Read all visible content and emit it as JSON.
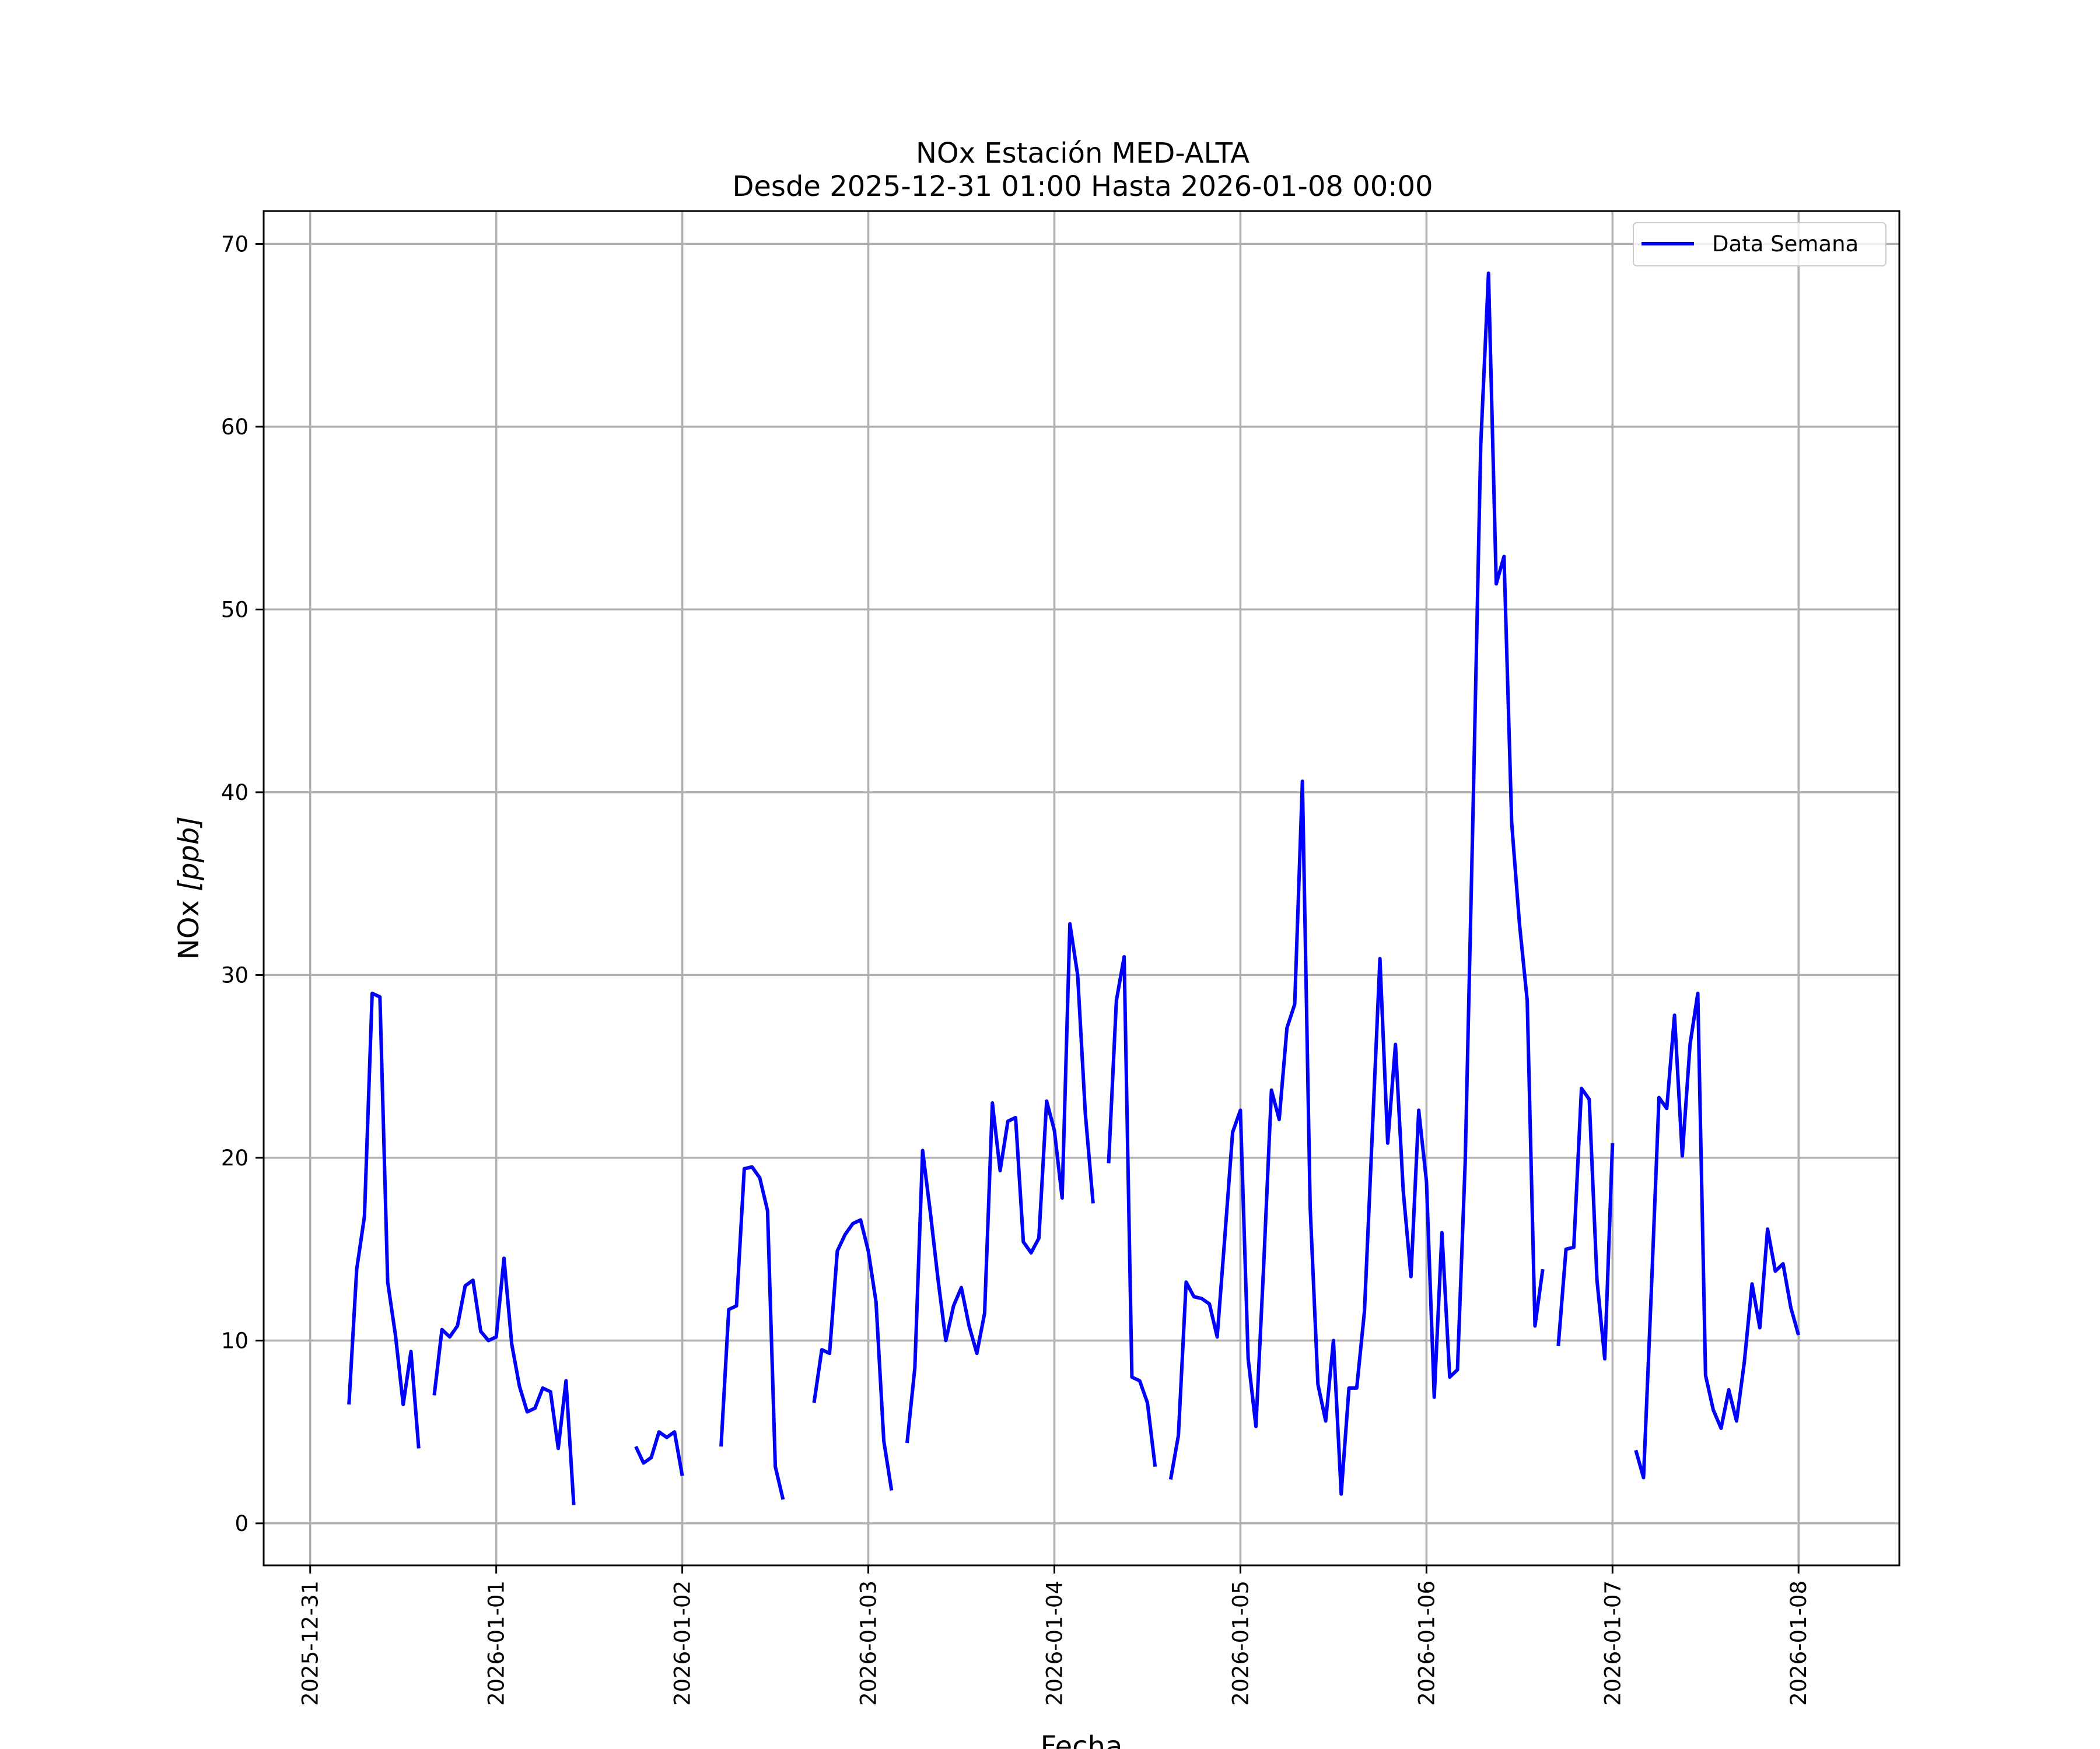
{
  "chart_data": {
    "type": "line",
    "title": "NOx Estación MED-ALTA",
    "subtitle": "Desde 2025-12-31 01:00 Hasta 2026-01-08 00:00",
    "xlabel": "Fecha",
    "ylabel": "NOx [ppb]",
    "ylabel_main": "NOx ",
    "ylabel_unit": "[ppb]",
    "x_ticks": [
      "2025-12-31",
      "2026-01-01",
      "2026-01-02",
      "2026-01-03",
      "2026-01-04",
      "2026-01-05",
      "2026-01-06",
      "2026-01-07",
      "2026-01-08"
    ],
    "y_ticks": [
      "0",
      "10",
      "20",
      "30",
      "40",
      "50",
      "60",
      "70"
    ],
    "xlim": [
      "2025-12-30 18:00",
      "2026-01-08 13:00"
    ],
    "ylim": [
      -2.3,
      71.8
    ],
    "grid": true,
    "legend_position": "upper right",
    "color": "#0000ff",
    "series": [
      {
        "name": "Data Semana",
        "segments": [
          [
            [
              "2025-12-31 05:00",
              6.5
            ],
            [
              "2025-12-31 06:00",
              13.9
            ],
            [
              "2025-12-31 07:00",
              16.8
            ],
            [
              "2025-12-31 08:00",
              29.0
            ],
            [
              "2025-12-31 09:00",
              28.8
            ],
            [
              "2025-12-31 10:00",
              13.2
            ],
            [
              "2025-12-31 11:00",
              10.3
            ],
            [
              "2025-12-31 12:00",
              6.5
            ],
            [
              "2025-12-31 13:00",
              9.4
            ],
            [
              "2025-12-31 14:00",
              4.1
            ]
          ],
          [
            [
              "2025-12-31 16:00",
              7.0
            ],
            [
              "2025-12-31 17:00",
              10.6
            ],
            [
              "2025-12-31 18:00",
              10.2
            ],
            [
              "2025-12-31 19:00",
              10.8
            ],
            [
              "2025-12-31 20:00",
              13.0
            ],
            [
              "2025-12-31 21:00",
              13.3
            ],
            [
              "2025-12-31 22:00",
              10.5
            ],
            [
              "2025-12-31 23:00",
              10.0
            ],
            [
              "2026-01-01 00:00",
              10.2
            ],
            [
              "2026-01-01 01:00",
              14.5
            ],
            [
              "2026-01-01 02:00",
              9.8
            ],
            [
              "2026-01-01 03:00",
              7.5
            ],
            [
              "2026-01-01 04:00",
              6.1
            ],
            [
              "2026-01-01 05:00",
              6.3
            ],
            [
              "2026-01-01 06:00",
              7.4
            ],
            [
              "2026-01-01 07:00",
              7.2
            ],
            [
              "2026-01-01 08:00",
              4.1
            ],
            [
              "2026-01-01 09:00",
              7.8
            ],
            [
              "2026-01-01 10:00",
              1.0
            ]
          ],
          [
            [
              "2026-01-01 18:00",
              4.2
            ],
            [
              "2026-01-01 19:00",
              3.3
            ],
            [
              "2026-01-01 20:00",
              3.6
            ],
            [
              "2026-01-01 21:00",
              5.0
            ],
            [
              "2026-01-01 22:00",
              4.7
            ],
            [
              "2026-01-01 23:00",
              5.0
            ],
            [
              "2026-01-02 00:00",
              2.6
            ]
          ],
          [
            [
              "2026-01-02 05:00",
              4.2
            ],
            [
              "2026-01-02 06:00",
              11.7
            ],
            [
              "2026-01-02 07:00",
              11.9
            ],
            [
              "2026-01-02 08:00",
              19.4
            ],
            [
              "2026-01-02 09:00",
              19.5
            ],
            [
              "2026-01-02 10:00",
              18.9
            ],
            [
              "2026-01-02 11:00",
              17.1
            ],
            [
              "2026-01-02 12:00",
              3.1
            ],
            [
              "2026-01-02 13:00",
              1.3
            ]
          ],
          [
            [
              "2026-01-02 17:00",
              6.6
            ],
            [
              "2026-01-02 18:00",
              9.5
            ],
            [
              "2026-01-02 19:00",
              9.3
            ],
            [
              "2026-01-02 20:00",
              14.9
            ],
            [
              "2026-01-02 21:00",
              15.8
            ],
            [
              "2026-01-02 22:00",
              16.4
            ],
            [
              "2026-01-02 23:00",
              16.6
            ],
            [
              "2026-01-03 00:00",
              14.9
            ],
            [
              "2026-01-03 01:00",
              12.1
            ],
            [
              "2026-01-03 02:00",
              4.5
            ],
            [
              "2026-01-03 03:00",
              1.8
            ]
          ],
          [
            [
              "2026-01-03 05:00",
              4.4
            ],
            [
              "2026-01-03 06:00",
              8.5
            ],
            [
              "2026-01-03 07:00",
              20.4
            ],
            [
              "2026-01-03 08:00",
              17.0
            ],
            [
              "2026-01-03 09:00",
              13.3
            ],
            [
              "2026-01-03 10:00",
              10.0
            ],
            [
              "2026-01-03 11:00",
              11.9
            ],
            [
              "2026-01-03 12:00",
              12.9
            ],
            [
              "2026-01-03 13:00",
              10.8
            ],
            [
              "2026-01-03 14:00",
              9.3
            ],
            [
              "2026-01-03 15:00",
              11.5
            ],
            [
              "2026-01-03 16:00",
              23.0
            ],
            [
              "2026-01-03 17:00",
              19.3
            ],
            [
              "2026-01-03 18:00",
              22.0
            ],
            [
              "2026-01-03 19:00",
              22.2
            ],
            [
              "2026-01-03 20:00",
              15.4
            ],
            [
              "2026-01-03 21:00",
              14.8
            ],
            [
              "2026-01-03 22:00",
              15.6
            ],
            [
              "2026-01-03 23:00",
              23.1
            ],
            [
              "2026-01-04 00:00",
              21.5
            ],
            [
              "2026-01-04 01:00",
              17.8
            ],
            [
              "2026-01-04 02:00",
              32.8
            ],
            [
              "2026-01-04 03:00",
              30.0
            ],
            [
              "2026-01-04 04:00",
              22.4
            ],
            [
              "2026-01-04 05:00",
              17.5
            ]
          ],
          [
            [
              "2026-01-04 07:00",
              19.7
            ],
            [
              "2026-01-04 08:00",
              28.6
            ],
            [
              "2026-01-04 09:00",
              31.0
            ],
            [
              "2026-01-04 10:00",
              8.0
            ],
            [
              "2026-01-04 11:00",
              7.8
            ],
            [
              "2026-01-04 12:00",
              6.6
            ],
            [
              "2026-01-04 13:00",
              3.1
            ]
          ],
          [
            [
              "2026-01-04 15:00",
              2.4
            ],
            [
              "2026-01-04 16:00",
              4.8
            ],
            [
              "2026-01-04 17:00",
              13.2
            ],
            [
              "2026-01-04 18:00",
              12.4
            ],
            [
              "2026-01-04 19:00",
              12.3
            ],
            [
              "2026-01-04 20:00",
              12.0
            ],
            [
              "2026-01-04 21:00",
              10.2
            ],
            [
              "2026-01-04 22:00",
              15.7
            ],
            [
              "2026-01-04 23:00",
              21.4
            ],
            [
              "2026-01-05 00:00",
              22.6
            ],
            [
              "2026-01-05 01:00",
              9.0
            ],
            [
              "2026-01-05 02:00",
              5.3
            ],
            [
              "2026-01-05 03:00",
              14.1
            ],
            [
              "2026-01-05 04:00",
              23.7
            ],
            [
              "2026-01-05 05:00",
              22.1
            ],
            [
              "2026-01-05 06:00",
              27.1
            ],
            [
              "2026-01-05 07:00",
              28.4
            ],
            [
              "2026-01-05 08:00",
              40.6
            ],
            [
              "2026-01-05 09:00",
              17.3
            ],
            [
              "2026-01-05 10:00",
              7.6
            ],
            [
              "2026-01-05 11:00",
              5.6
            ],
            [
              "2026-01-05 12:00",
              10.0
            ],
            [
              "2026-01-05 13:00",
              1.6
            ],
            [
              "2026-01-05 14:00",
              7.4
            ],
            [
              "2026-01-05 15:00",
              7.4
            ],
            [
              "2026-01-05 16:00",
              11.6
            ],
            [
              "2026-01-05 17:00",
              21.2
            ],
            [
              "2026-01-05 18:00",
              30.9
            ],
            [
              "2026-01-05 19:00",
              20.8
            ],
            [
              "2026-01-05 20:00",
              26.2
            ],
            [
              "2026-01-05 21:00",
              18.2
            ],
            [
              "2026-01-05 22:00",
              13.5
            ],
            [
              "2026-01-05 23:00",
              22.6
            ],
            [
              "2026-01-06 00:00",
              18.7
            ],
            [
              "2026-01-06 01:00",
              6.9
            ],
            [
              "2026-01-06 02:00",
              15.9
            ],
            [
              "2026-01-06 03:00",
              8.0
            ],
            [
              "2026-01-06 04:00",
              8.4
            ],
            [
              "2026-01-06 05:00",
              19.8
            ],
            [
              "2026-01-06 06:00",
              38.8
            ],
            [
              "2026-01-06 07:00",
              59.0
            ],
            [
              "2026-01-06 08:00",
              68.4
            ],
            [
              "2026-01-06 09:00",
              51.4
            ],
            [
              "2026-01-06 10:00",
              52.9
            ],
            [
              "2026-01-06 11:00",
              38.3
            ],
            [
              "2026-01-06 12:00",
              32.8
            ],
            [
              "2026-01-06 13:00",
              28.6
            ],
            [
              "2026-01-06 14:00",
              10.8
            ],
            [
              "2026-01-06 15:00",
              13.9
            ]
          ],
          [
            [
              "2026-01-06 17:00",
              9.7
            ],
            [
              "2026-01-06 18:00",
              15.0
            ],
            [
              "2026-01-06 19:00",
              15.1
            ],
            [
              "2026-01-06 20:00",
              23.8
            ],
            [
              "2026-01-06 21:00",
              23.2
            ],
            [
              "2026-01-06 22:00",
              13.3
            ],
            [
              "2026-01-06 23:00",
              9.0
            ],
            [
              "2026-01-07 00:00",
              20.8
            ]
          ],
          [
            [
              "2026-01-07 03:00",
              4.0
            ],
            [
              "2026-01-07 04:00",
              2.5
            ],
            [
              "2026-01-07 05:00",
              12.6
            ],
            [
              "2026-01-07 06:00",
              23.3
            ],
            [
              "2026-01-07 07:00",
              22.7
            ],
            [
              "2026-01-07 08:00",
              27.8
            ],
            [
              "2026-01-07 09:00",
              20.1
            ],
            [
              "2026-01-07 10:00",
              26.2
            ],
            [
              "2026-01-07 11:00",
              29.0
            ],
            [
              "2026-01-07 12:00",
              8.1
            ],
            [
              "2026-01-07 13:00",
              6.2
            ],
            [
              "2026-01-07 14:00",
              5.2
            ],
            [
              "2026-01-07 15:00",
              7.3
            ],
            [
              "2026-01-07 16:00",
              5.6
            ],
            [
              "2026-01-07 17:00",
              8.8
            ],
            [
              "2026-01-07 18:00",
              13.1
            ],
            [
              "2026-01-07 19:00",
              10.7
            ],
            [
              "2026-01-07 20:00",
              16.1
            ],
            [
              "2026-01-07 21:00",
              13.8
            ],
            [
              "2026-01-07 22:00",
              14.2
            ],
            [
              "2026-01-07 23:00",
              11.8
            ],
            [
              "2026-01-08 00:00",
              10.3
            ]
          ]
        ]
      }
    ]
  }
}
